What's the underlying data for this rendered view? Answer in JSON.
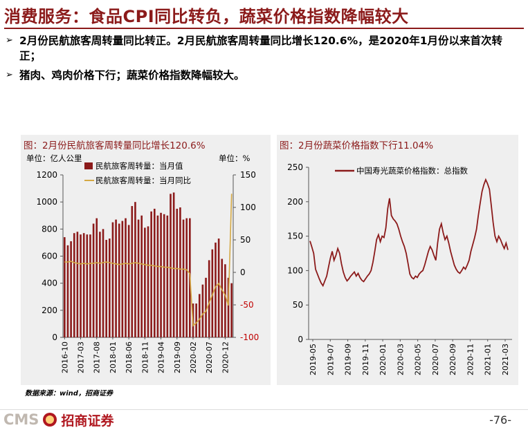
{
  "header": {
    "title": "消费服务：食品CPI同比转负，蔬菜价格指数降幅较大"
  },
  "bullets": [
    "2月份民航旅客周转量同比转正。2月民航旅客周转量同比增长120.6%，是2020年1月份以来首次转正；",
    "猪肉、鸡肉价格下行；蔬菜价格指数降幅较大。"
  ],
  "bullet_marker": "➢",
  "chart_data": [
    {
      "type": "bar+line",
      "title": "图：2月份民航旅客周转量同比增长120.6%",
      "unit_left": "单位：亿人公里",
      "unit_right": "单位：%",
      "legend": [
        "民航旅客周转量：当月值",
        "民航旅客周转量：当月同比"
      ],
      "legend_position": "top-center",
      "colors": {
        "bar": "#8b1a1a",
        "line": "#d4a843"
      },
      "ylim_left": [
        0,
        1200
      ],
      "yticks_left": [
        "0",
        "200",
        "400",
        "600",
        "800",
        "1000",
        "1200"
      ],
      "ylim_right": [
        -100,
        150
      ],
      "yticks_right": [
        "-100",
        "-50",
        "0",
        "50",
        "100",
        "150"
      ],
      "x_tick_labels": [
        "2016-10",
        "2017-03",
        "2017-08",
        "2018-01",
        "2018-06",
        "2018-11",
        "2019-04",
        "2019-09",
        "2020-02",
        "2020-07",
        "2020-12"
      ],
      "periods": [
        "2016-10",
        "2016-11",
        "2016-12",
        "2017-01",
        "2017-02",
        "2017-03",
        "2017-04",
        "2017-05",
        "2017-06",
        "2017-07",
        "2017-08",
        "2017-09",
        "2017-10",
        "2017-11",
        "2017-12",
        "2018-01",
        "2018-02",
        "2018-03",
        "2018-04",
        "2018-05",
        "2018-06",
        "2018-07",
        "2018-08",
        "2018-09",
        "2018-10",
        "2018-11",
        "2018-12",
        "2019-01",
        "2019-02",
        "2019-03",
        "2019-04",
        "2019-05",
        "2019-06",
        "2019-07",
        "2019-08",
        "2019-09",
        "2019-10",
        "2019-11",
        "2019-12",
        "2020-01",
        "2020-02",
        "2020-03",
        "2020-04",
        "2020-05",
        "2020-06",
        "2020-07",
        "2020-08",
        "2020-09",
        "2020-10",
        "2020-11",
        "2020-12",
        "2021-01",
        "2021-02"
      ],
      "series": [
        {
          "name": "民航旅客周转量：当月值",
          "axis": "left",
          "values": [
            740,
            680,
            710,
            770,
            780,
            760,
            770,
            760,
            760,
            840,
            880,
            780,
            800,
            720,
            730,
            850,
            870,
            840,
            860,
            880,
            830,
            970,
            1000,
            870,
            900,
            810,
            820,
            930,
            950,
            900,
            920,
            910,
            900,
            1060,
            1070,
            950,
            960,
            870,
            880,
            880,
            250,
            250,
            320,
            390,
            440,
            570,
            650,
            700,
            730,
            580,
            540,
            440,
            400
          ]
        },
        {
          "name": "民航旅客周转量：当月同比",
          "axis": "right",
          "values": [
            16,
            16,
            17,
            15,
            14,
            13,
            14,
            13,
            14,
            14,
            15,
            14,
            15,
            16,
            15,
            14,
            13,
            12,
            13,
            14,
            13,
            14,
            15,
            14,
            13,
            12,
            11,
            11,
            10,
            9,
            9,
            8,
            8,
            7,
            6,
            6,
            5,
            5,
            4,
            -2,
            -82,
            -78,
            -72,
            -64,
            -60,
            -47,
            -35,
            -22,
            -17,
            -27,
            -35,
            -51,
            121
          ]
        }
      ]
    },
    {
      "type": "line",
      "title": "图：2月份蔬菜价格指数下行11.04%",
      "legend": [
        "中国寿光蔬菜价格指数：总指数"
      ],
      "legend_position": "top-left",
      "colors": {
        "line": "#8b1a1a"
      },
      "ylim": [
        0,
        250
      ],
      "yticks": [
        "0",
        "50",
        "100",
        "150",
        "200",
        "250"
      ],
      "x_tick_labels": [
        "2019-05",
        "2019-07",
        "2019-09",
        "2019-11",
        "2020-01",
        "2020-03",
        "2020-05",
        "2020-07",
        "2020-09",
        "2020-11",
        "2021-01",
        "2021-03"
      ],
      "x_start": "2019-05",
      "x_end": "2021-03",
      "series": [
        {
          "name": "中国寿光蔬菜价格指数：总指数",
          "values": [
            143,
            134,
            125,
            102,
            95,
            88,
            82,
            78,
            85,
            92,
            105,
            118,
            128,
            115,
            122,
            132,
            125,
            110,
            98,
            90,
            85,
            88,
            92,
            95,
            98,
            92,
            96,
            90,
            86,
            84,
            88,
            92,
            95,
            100,
            112,
            128,
            145,
            152,
            142,
            150,
            148,
            162,
            190,
            205,
            180,
            175,
            172,
            168,
            160,
            150,
            142,
            135,
            125,
            110,
            95,
            90,
            88,
            92,
            90,
            95,
            98,
            100,
            108,
            118,
            128,
            135,
            130,
            122,
            115,
            140,
            160,
            168,
            155,
            145,
            150,
            140,
            128,
            118,
            108,
            102,
            98,
            96,
            100,
            105,
            102,
            108,
            115,
            128,
            138,
            148,
            160,
            180,
            198,
            215,
            225,
            232,
            226,
            218,
            195,
            170,
            150,
            142,
            150,
            145,
            138,
            132,
            140,
            130
          ]
        }
      ]
    }
  ],
  "source": "数据来源：wind，招商证券",
  "footer": {
    "logo_text": "CMS",
    "logo_cn": "招商证券",
    "page": "-76-"
  }
}
